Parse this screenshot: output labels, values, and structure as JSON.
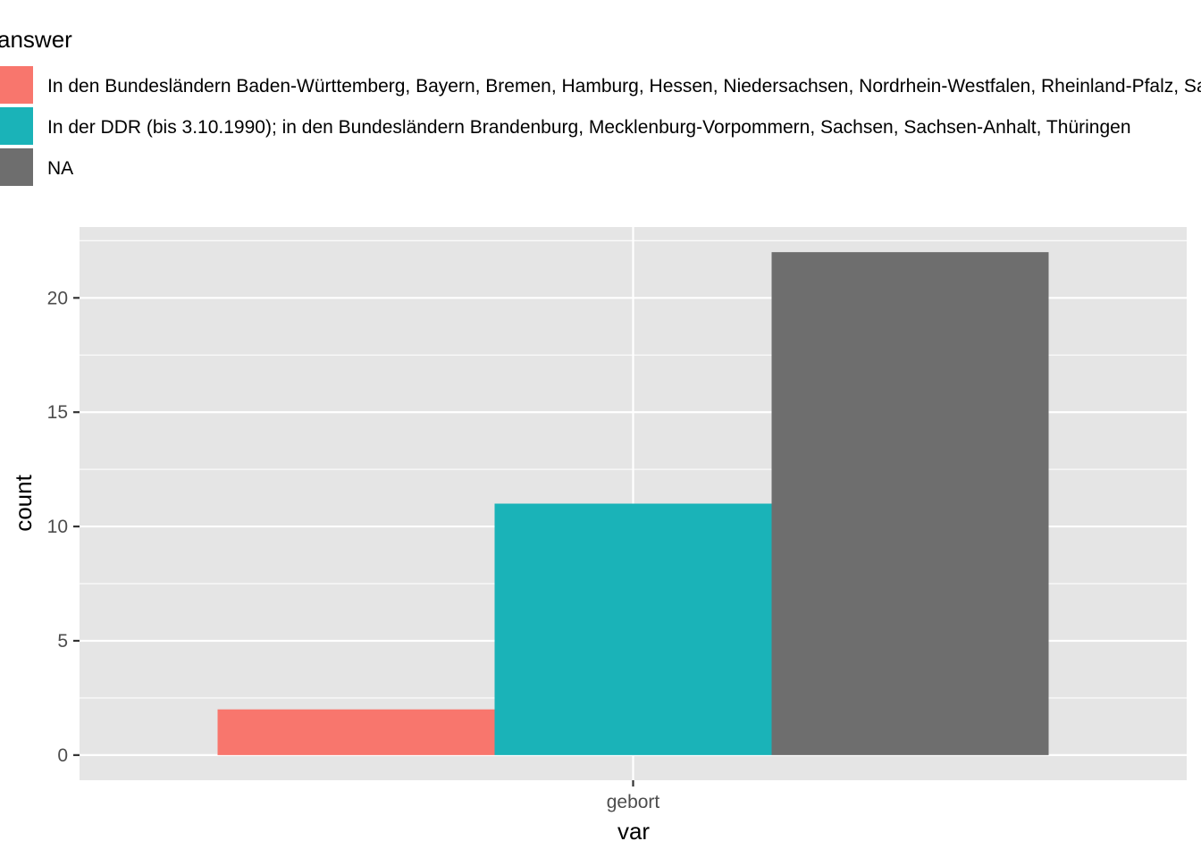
{
  "chart_data": {
    "type": "bar",
    "legend_title": "answer",
    "legend_position": "top",
    "categories": [
      "gebort"
    ],
    "xlabel": "var",
    "ylabel": "count",
    "ylim": [
      -1.1,
      23.1
    ],
    "y_ticks": [
      "0",
      "5",
      "10",
      "15",
      "20"
    ],
    "grid": true,
    "series": [
      {
        "name": "In den Bundesländern Baden-Württemberg, Bayern, Bremen, Hamburg, Hessen, Niedersachsen, Nordrhein-Westfalen, Rheinland-Pfalz, Saarland, Schleswig-Holstein",
        "values": [
          2
        ],
        "color": "#F8766D"
      },
      {
        "name": "In der DDR (bis 3.10.1990); in den Bundesländern Brandenburg, Mecklenburg-Vorpommern, Sachsen, Sachsen-Anhalt, Thüringen",
        "values": [
          11
        ],
        "color": "#1AB3B8"
      },
      {
        "name": "NA",
        "values": [
          22
        ],
        "color": "#6E6E6E"
      }
    ],
    "panel_background": "#E5E5E5",
    "grid_color": "#FFFFFF"
  }
}
